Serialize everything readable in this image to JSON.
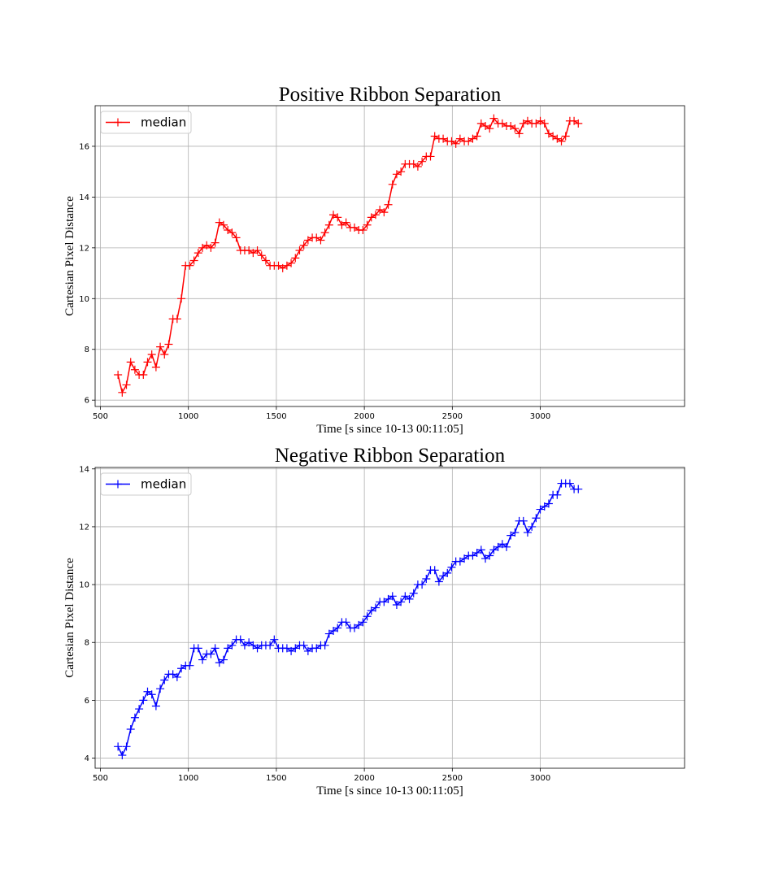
{
  "chart_data": [
    {
      "type": "line",
      "title": "Positive Ribbon Separation",
      "xlabel": "Time [s since 10-13 00:11:05]",
      "ylabel": "Cartesian Pixel Distance",
      "xlim": [
        470,
        3820
      ],
      "ylim": [
        5.75,
        17.6
      ],
      "xticks": [
        500,
        1000,
        1500,
        2000,
        2500,
        3000
      ],
      "yticks": [
        6,
        8,
        10,
        12,
        14,
        16
      ],
      "grid": true,
      "legend": "upper-left",
      "color": "#ff0000",
      "marker": "plus",
      "series": [
        {
          "name": "median",
          "x": [
            600,
            624,
            648,
            672,
            696,
            720,
            744,
            768,
            792,
            816,
            840,
            864,
            888,
            912,
            936,
            960,
            984,
            1008,
            1032,
            1056,
            1080,
            1104,
            1128,
            1152,
            1176,
            1200,
            1224,
            1248,
            1272,
            1296,
            1320,
            1344,
            1368,
            1392,
            1416,
            1440,
            1464,
            1488,
            1512,
            1536,
            1560,
            1584,
            1608,
            1632,
            1656,
            1680,
            1704,
            1728,
            1752,
            1776,
            1800,
            1824,
            1848,
            1872,
            1896,
            1920,
            1944,
            1968,
            1992,
            2016,
            2040,
            2064,
            2088,
            2112,
            2136,
            2160,
            2184,
            2208,
            2232,
            2256,
            2280,
            2304,
            2328,
            2352,
            2376,
            2400,
            2424,
            2448,
            2472,
            2496,
            2520,
            2544,
            2568,
            2592,
            2616,
            2640,
            2664,
            2688,
            2712,
            2736,
            2760,
            2784,
            2808,
            2832,
            2856,
            2880,
            2904,
            2928,
            2952,
            2976,
            3000,
            3024,
            3048,
            3072,
            3096,
            3120,
            3144,
            3168,
            3192,
            3216
          ],
          "y": [
            7.0,
            6.3,
            6.6,
            7.5,
            7.2,
            7.0,
            7.0,
            7.5,
            7.8,
            7.3,
            8.1,
            7.8,
            8.2,
            9.2,
            9.2,
            10.0,
            11.3,
            11.3,
            11.5,
            11.8,
            12.0,
            12.1,
            12.0,
            12.2,
            13.0,
            12.9,
            12.7,
            12.6,
            12.4,
            11.9,
            11.9,
            11.9,
            11.8,
            11.9,
            11.7,
            11.5,
            11.3,
            11.3,
            11.3,
            11.2,
            11.3,
            11.4,
            11.6,
            11.9,
            12.1,
            12.3,
            12.4,
            12.4,
            12.3,
            12.6,
            12.9,
            13.3,
            13.2,
            12.9,
            13.0,
            12.8,
            12.8,
            12.7,
            12.7,
            12.9,
            13.2,
            13.3,
            13.5,
            13.4,
            13.7,
            14.5,
            14.9,
            15.0,
            15.3,
            15.3,
            15.3,
            15.2,
            15.4,
            15.6,
            15.6,
            16.4,
            16.3,
            16.3,
            16.2,
            16.2,
            16.1,
            16.3,
            16.2,
            16.2,
            16.3,
            16.4,
            16.9,
            16.8,
            16.7,
            17.1,
            16.9,
            16.9,
            16.8,
            16.8,
            16.7,
            16.5,
            16.9,
            17.0,
            16.9,
            16.9,
            17.0,
            16.9,
            16.5,
            16.4,
            16.3,
            16.2,
            16.4,
            17.0,
            17.0,
            16.9
          ]
        }
      ]
    },
    {
      "type": "line",
      "title": "Negative Ribbon Separation",
      "xlabel": "Time [s since 10-13 00:11:05]",
      "ylabel": "Cartesian Pixel Distance",
      "xlim": [
        470,
        3820
      ],
      "ylim": [
        3.65,
        14.05
      ],
      "xticks": [
        500,
        1000,
        1500,
        2000,
        2500,
        3000
      ],
      "yticks": [
        4,
        6,
        8,
        10,
        12,
        14
      ],
      "grid": true,
      "legend": "upper-left",
      "color": "#0000ff",
      "marker": "plus",
      "series": [
        {
          "name": "median",
          "x": [
            600,
            624,
            648,
            672,
            696,
            720,
            744,
            768,
            792,
            816,
            840,
            864,
            888,
            912,
            936,
            960,
            984,
            1008,
            1032,
            1056,
            1080,
            1104,
            1128,
            1152,
            1176,
            1200,
            1224,
            1248,
            1272,
            1296,
            1320,
            1344,
            1368,
            1392,
            1416,
            1440,
            1464,
            1488,
            1512,
            1536,
            1560,
            1584,
            1608,
            1632,
            1656,
            1680,
            1704,
            1728,
            1752,
            1776,
            1800,
            1824,
            1848,
            1872,
            1896,
            1920,
            1944,
            1968,
            1992,
            2016,
            2040,
            2064,
            2088,
            2112,
            2136,
            2160,
            2184,
            2208,
            2232,
            2256,
            2280,
            2304,
            2328,
            2352,
            2376,
            2400,
            2424,
            2448,
            2472,
            2496,
            2520,
            2544,
            2568,
            2592,
            2616,
            2640,
            2664,
            2688,
            2712,
            2736,
            2760,
            2784,
            2808,
            2832,
            2856,
            2880,
            2904,
            2928,
            2952,
            2976,
            3000,
            3024,
            3048,
            3072,
            3096,
            3120,
            3144,
            3168,
            3192,
            3216
          ],
          "y": [
            4.4,
            4.1,
            4.4,
            5.0,
            5.4,
            5.7,
            6.0,
            6.3,
            6.2,
            5.8,
            6.4,
            6.7,
            6.9,
            6.9,
            6.8,
            7.1,
            7.2,
            7.2,
            7.8,
            7.8,
            7.4,
            7.6,
            7.6,
            7.8,
            7.3,
            7.4,
            7.8,
            7.9,
            8.1,
            8.1,
            7.9,
            8.0,
            7.9,
            7.8,
            7.9,
            7.9,
            7.9,
            8.1,
            7.8,
            7.8,
            7.8,
            7.7,
            7.8,
            7.9,
            7.9,
            7.7,
            7.8,
            7.8,
            7.9,
            7.9,
            8.3,
            8.4,
            8.5,
            8.7,
            8.7,
            8.5,
            8.5,
            8.6,
            8.7,
            8.9,
            9.1,
            9.2,
            9.4,
            9.4,
            9.5,
            9.6,
            9.3,
            9.4,
            9.6,
            9.5,
            9.7,
            10.0,
            10.0,
            10.2,
            10.5,
            10.5,
            10.1,
            10.3,
            10.4,
            10.6,
            10.8,
            10.8,
            10.9,
            11.0,
            11.0,
            11.1,
            11.2,
            10.9,
            11.0,
            11.2,
            11.3,
            11.4,
            11.3,
            11.7,
            11.8,
            12.2,
            12.2,
            11.8,
            12.0,
            12.3,
            12.6,
            12.7,
            12.8,
            13.1,
            13.1,
            13.5,
            13.5,
            13.5,
            13.3,
            13.3
          ]
        }
      ]
    }
  ]
}
